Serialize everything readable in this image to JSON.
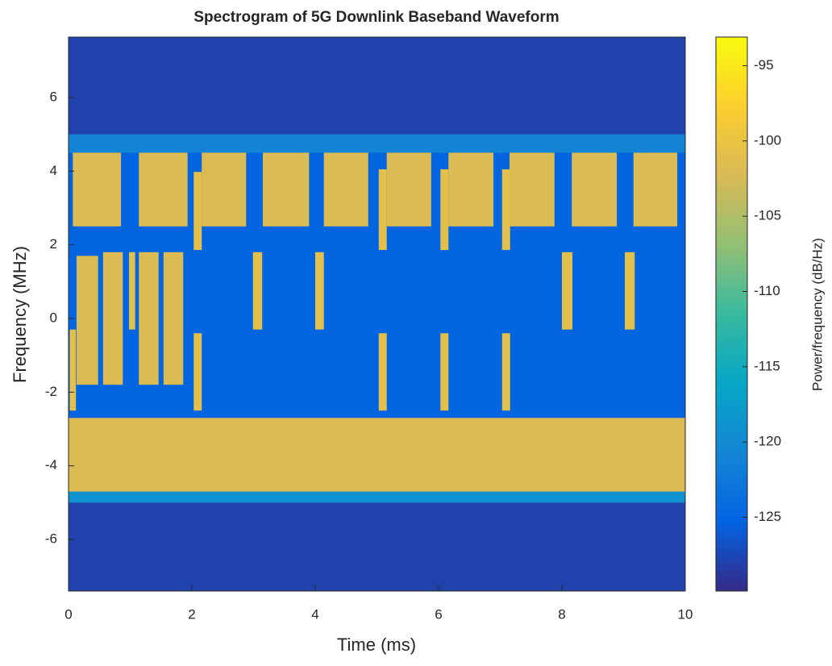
{
  "chart_data": {
    "type": "spectrogram",
    "title": "Spectrogram of 5G Downlink Baseband Waveform",
    "x_label": "Time (ms)",
    "y_label": "Frequency (MHz)",
    "xlim": [
      0,
      10
    ],
    "xticks": [
      0,
      2,
      4,
      6,
      8,
      10
    ],
    "ylim": [
      -7.4,
      7.64
    ],
    "yticks": [
      -6,
      -4,
      -2,
      0,
      2,
      4,
      6
    ],
    "background_power": -128,
    "colorbar": {
      "label": "Power/frequency (dB/Hz)",
      "clim": [
        -129.9,
        -93.1
      ],
      "ticks": [
        -125,
        -120,
        -115,
        -110,
        -105,
        -100,
        -95
      ]
    },
    "blocks": [
      {
        "t": [
          0,
          10
        ],
        "f": [
          -5.0,
          5.0
        ],
        "power": -125
      },
      {
        "t": [
          0,
          10
        ],
        "f": [
          -5.0,
          -4.7
        ],
        "power": -119
      },
      {
        "t": [
          0,
          10
        ],
        "f": [
          4.5,
          5.0
        ],
        "power": -121
      },
      {
        "t": [
          0,
          10
        ],
        "f": [
          -4.7,
          -2.7
        ],
        "power": -102
      },
      {
        "t": [
          0.07,
          0.85
        ],
        "f": [
          2.5,
          4.5
        ],
        "power": -102
      },
      {
        "t": [
          1.14,
          1.93
        ],
        "f": [
          2.5,
          4.5
        ],
        "power": -102
      },
      {
        "t": [
          2.16,
          2.88
        ],
        "f": [
          2.5,
          4.5
        ],
        "power": -102
      },
      {
        "t": [
          3.15,
          3.9
        ],
        "f": [
          2.5,
          4.5
        ],
        "power": -102
      },
      {
        "t": [
          4.14,
          4.86
        ],
        "f": [
          2.5,
          4.5
        ],
        "power": -102
      },
      {
        "t": [
          5.16,
          5.88
        ],
        "f": [
          2.5,
          4.5
        ],
        "power": -102
      },
      {
        "t": [
          6.16,
          6.89
        ],
        "f": [
          2.5,
          4.5
        ],
        "power": -102
      },
      {
        "t": [
          7.15,
          7.88
        ],
        "f": [
          2.5,
          4.5
        ],
        "power": -102
      },
      {
        "t": [
          8.16,
          8.89
        ],
        "f": [
          2.5,
          4.5
        ],
        "power": -102
      },
      {
        "t": [
          9.16,
          9.87
        ],
        "f": [
          2.5,
          4.5
        ],
        "power": -102
      },
      {
        "t": [
          0.02,
          0.12
        ],
        "f": [
          -2.5,
          -0.3
        ],
        "power": -101
      },
      {
        "t": [
          0.13,
          0.48
        ],
        "f": [
          -1.8,
          1.7
        ],
        "power": -102
      },
      {
        "t": [
          0.56,
          0.88
        ],
        "f": [
          -1.8,
          1.8
        ],
        "power": -102
      },
      {
        "t": [
          0.98,
          1.08
        ],
        "f": [
          -0.3,
          1.8
        ],
        "power": -101
      },
      {
        "t": [
          1.14,
          1.46
        ],
        "f": [
          -1.8,
          1.8
        ],
        "power": -102
      },
      {
        "t": [
          1.54,
          1.86
        ],
        "f": [
          -1.8,
          1.8
        ],
        "power": -102
      },
      {
        "t": [
          2.03,
          2.16
        ],
        "f": [
          1.86,
          3.98
        ],
        "power": -101
      },
      {
        "t": [
          5.03,
          5.16
        ],
        "f": [
          1.86,
          4.05
        ],
        "power": -101
      },
      {
        "t": [
          6.03,
          6.16
        ],
        "f": [
          1.86,
          4.05
        ],
        "power": -101
      },
      {
        "t": [
          7.03,
          7.16
        ],
        "f": [
          1.86,
          4.05
        ],
        "power": -101
      },
      {
        "t": [
          2.99,
          3.14
        ],
        "f": [
          -0.3,
          1.8
        ],
        "power": -101
      },
      {
        "t": [
          4.0,
          4.14
        ],
        "f": [
          -0.3,
          1.8
        ],
        "power": -101
      },
      {
        "t": [
          8.0,
          8.17
        ],
        "f": [
          -0.3,
          1.8
        ],
        "power": -101
      },
      {
        "t": [
          9.02,
          9.18
        ],
        "f": [
          -0.3,
          1.8
        ],
        "power": -101
      },
      {
        "t": [
          2.03,
          2.16
        ],
        "f": [
          -2.5,
          -0.4
        ],
        "power": -101
      },
      {
        "t": [
          5.03,
          5.16
        ],
        "f": [
          -2.5,
          -0.4
        ],
        "power": -101
      },
      {
        "t": [
          6.03,
          6.16
        ],
        "f": [
          -2.5,
          -0.4
        ],
        "power": -101
      },
      {
        "t": [
          7.03,
          7.16
        ],
        "f": [
          -2.5,
          -0.4
        ],
        "power": -101
      }
    ]
  }
}
